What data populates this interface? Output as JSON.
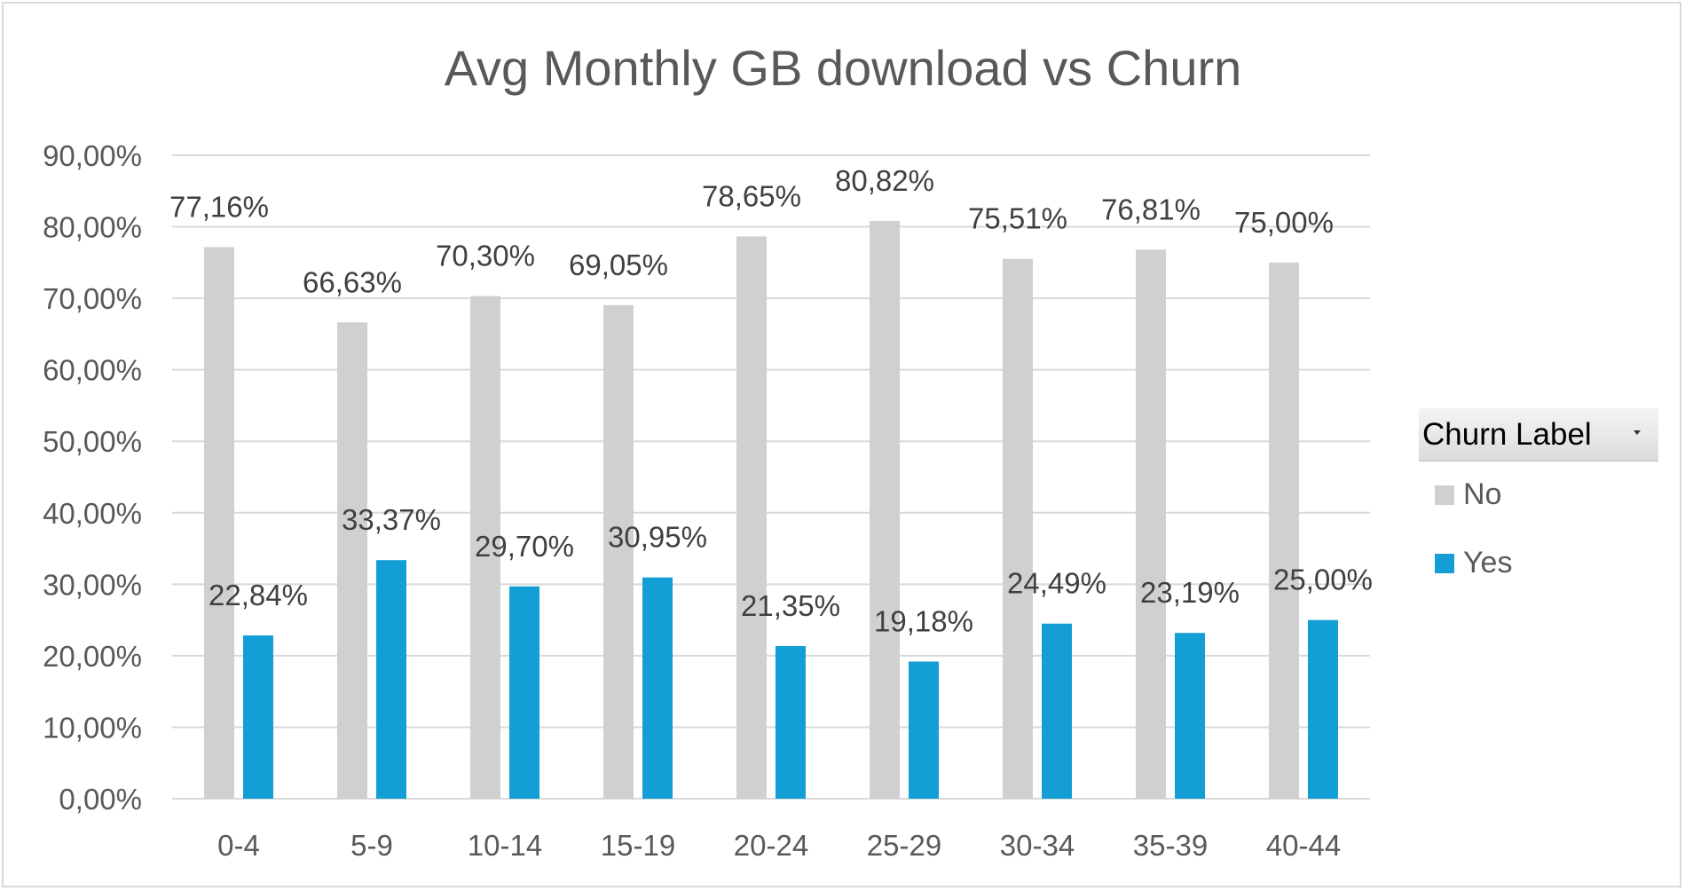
{
  "chart_data": {
    "type": "bar",
    "title": "Avg Monthly GB download vs Churn",
    "xlabel": "",
    "ylabel": "",
    "categories": [
      "0-4",
      "5-9",
      "10-14",
      "15-19",
      "20-24",
      "25-29",
      "30-34",
      "35-39",
      "40-44"
    ],
    "series": [
      {
        "name": "No",
        "color": "#d0d0d0",
        "values": [
          77.16,
          66.63,
          70.3,
          69.05,
          78.65,
          80.82,
          75.51,
          76.81,
          75.0
        ],
        "labels": [
          "77,16%",
          "66,63%",
          "70,30%",
          "69,05%",
          "78,65%",
          "80,82%",
          "75,51%",
          "76,81%",
          "75,00%"
        ]
      },
      {
        "name": "Yes",
        "color": "#139fd6",
        "values": [
          22.84,
          33.37,
          29.7,
          30.95,
          21.35,
          19.18,
          24.49,
          23.19,
          25.0
        ],
        "labels": [
          "22,84%",
          "33,37%",
          "29,70%",
          "30,95%",
          "21,35%",
          "19,18%",
          "24,49%",
          "23,19%",
          "25,00%"
        ]
      }
    ],
    "ylim": [
      0,
      90
    ],
    "yticks": [
      0,
      10,
      20,
      30,
      40,
      50,
      60,
      70,
      80,
      90
    ],
    "ytick_labels": [
      "0,00%",
      "10,00%",
      "20,00%",
      "30,00%",
      "40,00%",
      "50,00%",
      "60,00%",
      "70,00%",
      "80,00%",
      "90,00%"
    ],
    "grid": true,
    "legend_position": "right",
    "legend_title": "Churn Label"
  },
  "legend": {
    "title": "Churn Label",
    "dropdown_icon": "chevron-down-icon",
    "items": [
      {
        "label": "No",
        "color": "#d0d0d0"
      },
      {
        "label": "Yes",
        "color": "#139fd6"
      }
    ]
  },
  "colors": {
    "text": "#595959",
    "grid": "#d9d9d9",
    "label": "#404040"
  }
}
